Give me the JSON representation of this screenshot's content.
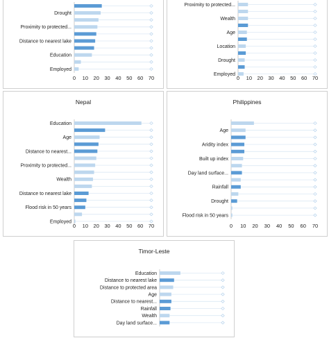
{
  "chart_data": [
    {
      "type": "bar",
      "title": "",
      "xlim": [
        0,
        70
      ],
      "xticks": [
        0,
        10,
        20,
        30,
        40,
        50,
        60,
        70
      ],
      "categories": [
        "Drought",
        "Proximity to protected...",
        "Distance to nearest lake",
        "Education",
        "Employed"
      ],
      "rows": [
        {
          "value": 25,
          "color": "#5b9bd5"
        },
        {
          "value": 24,
          "color": "#bdd7ee",
          "label": "Drought"
        },
        {
          "value": 22,
          "color": "#bdd7ee"
        },
        {
          "value": 21,
          "color": "#bdd7ee",
          "label": "Proximity to protected..."
        },
        {
          "value": 20,
          "color": "#5b9bd5"
        },
        {
          "value": 19,
          "color": "#5b9bd5",
          "label": "Distance to nearest lake"
        },
        {
          "value": 18,
          "color": "#5b9bd5"
        },
        {
          "value": 16,
          "color": "#bdd7ee",
          "label": "Education"
        },
        {
          "value": 6,
          "color": "#bdd7ee"
        },
        {
          "value": 4,
          "color": "#bdd7ee",
          "label": "Employed"
        }
      ]
    },
    {
      "type": "bar",
      "title": "",
      "xlim": [
        0,
        70
      ],
      "xticks": [
        0,
        10,
        20,
        30,
        40,
        50,
        60,
        70
      ],
      "categories": [
        "Proximity to protected...",
        "Wealth",
        "Age",
        "Location",
        "Drought",
        "Employed"
      ],
      "rows": [
        {
          "value": 9,
          "color": "#bdd7ee",
          "label": "Proximity to protected..."
        },
        {
          "value": 9,
          "color": "#bdd7ee"
        },
        {
          "value": 9,
          "color": "#bdd7ee",
          "label": "Wealth"
        },
        {
          "value": 9,
          "color": "#5b9bd5"
        },
        {
          "value": 8,
          "color": "#bdd7ee",
          "label": "Age"
        },
        {
          "value": 8,
          "color": "#5b9bd5"
        },
        {
          "value": 7,
          "color": "#bdd7ee",
          "label": "Location"
        },
        {
          "value": 7,
          "color": "#5b9bd5"
        },
        {
          "value": 6,
          "color": "#bdd7ee",
          "label": "Drought"
        },
        {
          "value": 6,
          "color": "#5b9bd5"
        },
        {
          "value": 5,
          "color": "#bdd7ee",
          "label": "Employed"
        }
      ]
    },
    {
      "type": "bar",
      "title": "Nepal",
      "xlim": [
        0,
        70
      ],
      "xticks": [
        0,
        10,
        20,
        30,
        40,
        50,
        60,
        70
      ],
      "categories": [
        "Education",
        "Age",
        "Distance to nearest...",
        "Proximity to protected...",
        "Wealth",
        "Distance to nearest lake",
        "Flood risk in 50 years",
        "Employed"
      ],
      "rows": [
        {
          "value": 61,
          "color": "#bdd7ee",
          "label": "Education"
        },
        {
          "value": 28,
          "color": "#5b9bd5"
        },
        {
          "value": 23,
          "color": "#bdd7ee",
          "label": "Age"
        },
        {
          "value": 22,
          "color": "#5b9bd5"
        },
        {
          "value": 21,
          "color": "#5b9bd5",
          "label": "Distance to nearest..."
        },
        {
          "value": 20,
          "color": "#bdd7ee"
        },
        {
          "value": 19,
          "color": "#bdd7ee",
          "label": "Proximity to protected..."
        },
        {
          "value": 18,
          "color": "#bdd7ee"
        },
        {
          "value": 17,
          "color": "#bdd7ee",
          "label": "Wealth"
        },
        {
          "value": 16,
          "color": "#bdd7ee"
        },
        {
          "value": 13,
          "color": "#5b9bd5",
          "label": "Distance to nearest lake"
        },
        {
          "value": 11,
          "color": "#5b9bd5"
        },
        {
          "value": 10,
          "color": "#5b9bd5",
          "label": "Flood risk in 50 years"
        },
        {
          "value": 7,
          "color": "#bdd7ee"
        },
        {
          "value": 1,
          "color": "#bdd7ee",
          "label": "Employed"
        }
      ]
    },
    {
      "type": "bar",
      "title": "Philippines",
      "xlim": [
        0,
        70
      ],
      "xticks": [
        0,
        10,
        20,
        30,
        40,
        50,
        60,
        70
      ],
      "categories": [
        "Age",
        "Aridity index",
        "Built up index",
        "Day land surface...",
        "Rainfall",
        "Drought",
        "Flood risk in 50 years"
      ],
      "rows": [
        {
          "value": 19,
          "color": "#bdd7ee"
        },
        {
          "value": 12,
          "color": "#bdd7ee",
          "label": "Age"
        },
        {
          "value": 12,
          "color": "#5b9bd5"
        },
        {
          "value": 11,
          "color": "#5b9bd5",
          "label": "Aridity index"
        },
        {
          "value": 11,
          "color": "#5b9bd5"
        },
        {
          "value": 10,
          "color": "#bdd7ee",
          "label": "Built up index"
        },
        {
          "value": 9,
          "color": "#bdd7ee"
        },
        {
          "value": 9,
          "color": "#5b9bd5",
          "label": "Day land surface..."
        },
        {
          "value": 8,
          "color": "#bdd7ee"
        },
        {
          "value": 8,
          "color": "#5b9bd5",
          "label": "Rainfall"
        },
        {
          "value": 6,
          "color": "#bdd7ee"
        },
        {
          "value": 5,
          "color": "#5b9bd5",
          "label": "Drought"
        },
        {
          "value": 1,
          "color": "#bdd7ee"
        },
        {
          "value": 1,
          "color": "#bdd7ee",
          "label": "Flood risk in 50 years"
        }
      ]
    },
    {
      "type": "bar",
      "title": "Timor-Leste",
      "xlim": [
        0,
        70
      ],
      "xticks": [
        0,
        10,
        20,
        30,
        40,
        50,
        60,
        70
      ],
      "categories": [
        "Education",
        "Distance to nearest lake",
        "Distance to protected area",
        "Age",
        "Distance to nearest...",
        "Rainfall",
        "Wealth",
        "Day land surface..."
      ],
      "rows": [
        {
          "value": 23,
          "color": "#bdd7ee",
          "label": "Education"
        },
        {
          "value": 16,
          "color": "#5b9bd5",
          "label": "Distance to nearest lake"
        },
        {
          "value": 15,
          "color": "#bdd7ee",
          "label": "Distance to protected area"
        },
        {
          "value": 13,
          "color": "#bdd7ee",
          "label": "Age"
        },
        {
          "value": 13,
          "color": "#5b9bd5",
          "label": "Distance to nearest..."
        },
        {
          "value": 12,
          "color": "#5b9bd5",
          "label": "Rainfall"
        },
        {
          "value": 11,
          "color": "#bdd7ee",
          "label": "Wealth"
        },
        {
          "value": 11,
          "color": "#5b9bd5",
          "label": "Day land surface..."
        }
      ]
    }
  ]
}
